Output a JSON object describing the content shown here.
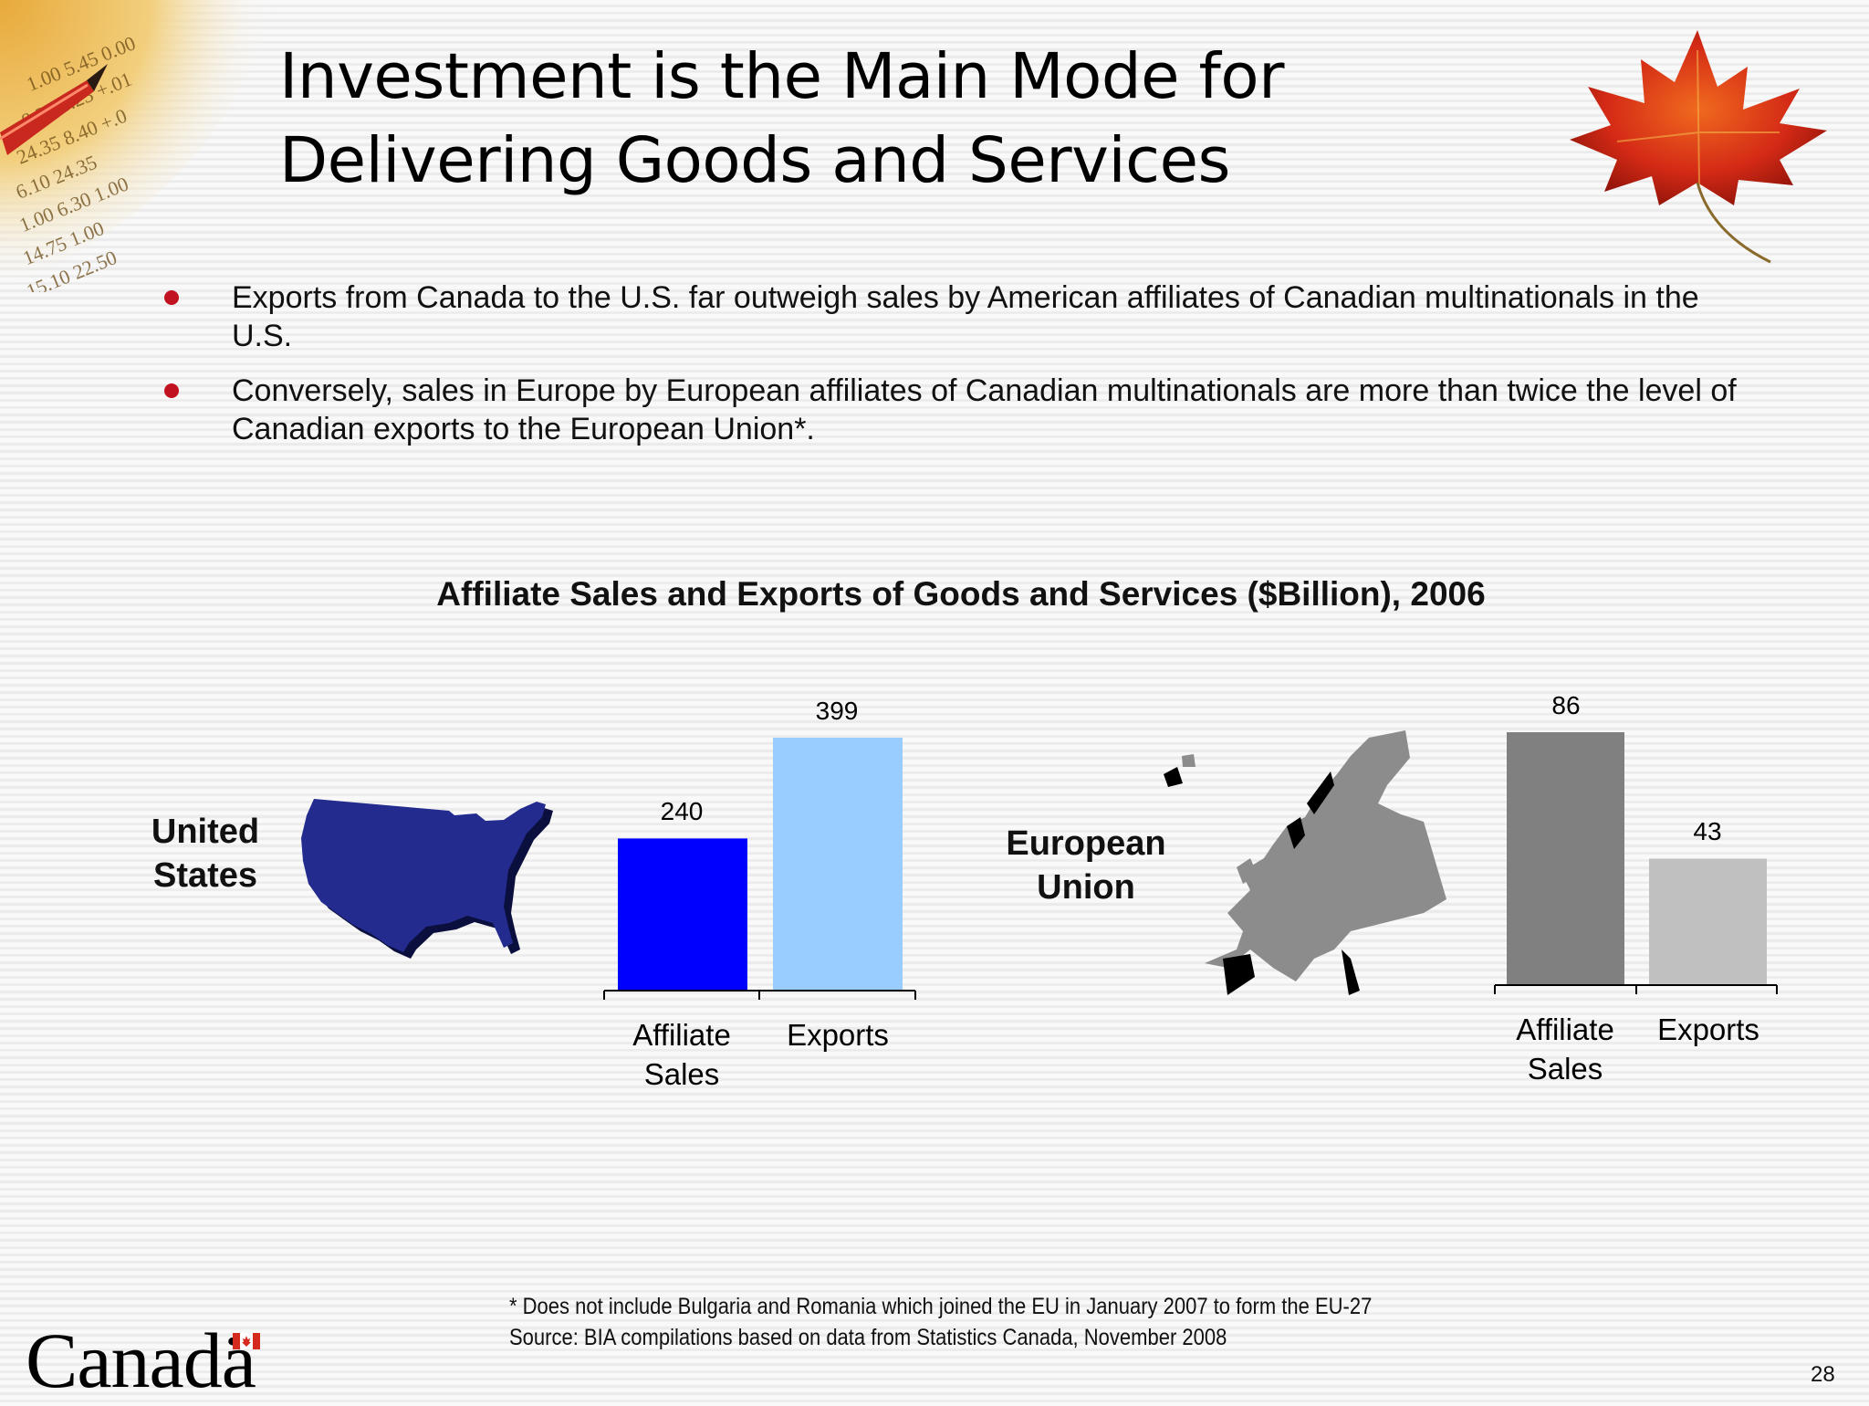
{
  "slide": {
    "title": "Investment is the Main Mode for Delivering Goods and Services",
    "bullets": [
      "Exports from Canada to the U.S. far outweigh sales by American affiliates of Canadian multinationals in the U.S.",
      "Conversely, sales in Europe by European affiliates of Canadian multinationals are more than twice the level of Canadian exports to the European Union*."
    ],
    "footnote": "* Does not include Bulgaria and Romania which joined the EU in January 2007 to form the EU-27",
    "source": "Source: BIA compilations based on data from Statistics Canada, November 2008",
    "wordmark": "Canadä",
    "page_number": "28"
  },
  "chart_data": {
    "title": "Affiliate Sales and Exports of Goods and Services ($Billion), 2006",
    "charts": [
      {
        "type": "bar",
        "region": "United States",
        "categories": [
          "Affiliate Sales",
          "Exports"
        ],
        "values": [
          240,
          399
        ],
        "colors": [
          "#0000ff",
          "#99ccff"
        ],
        "ylim": [
          0,
          399
        ],
        "grid": false,
        "legend": "none"
      },
      {
        "type": "bar",
        "region": "European Union",
        "categories": [
          "Affiliate Sales",
          "Exports"
        ],
        "values": [
          86,
          43
        ],
        "colors": [
          "#808080",
          "#c0c0c0"
        ],
        "ylim": [
          0,
          86
        ],
        "grid": false,
        "legend": "none"
      }
    ]
  },
  "colors": {
    "bullet": "#c1121f",
    "us_map": "#232b8f",
    "eu_map": "#8c8c8c"
  },
  "icons": [
    "finance-ticker-decoration",
    "maple-leaf-icon",
    "us-map-icon",
    "europe-map-icon",
    "canada-flag-icon"
  ]
}
